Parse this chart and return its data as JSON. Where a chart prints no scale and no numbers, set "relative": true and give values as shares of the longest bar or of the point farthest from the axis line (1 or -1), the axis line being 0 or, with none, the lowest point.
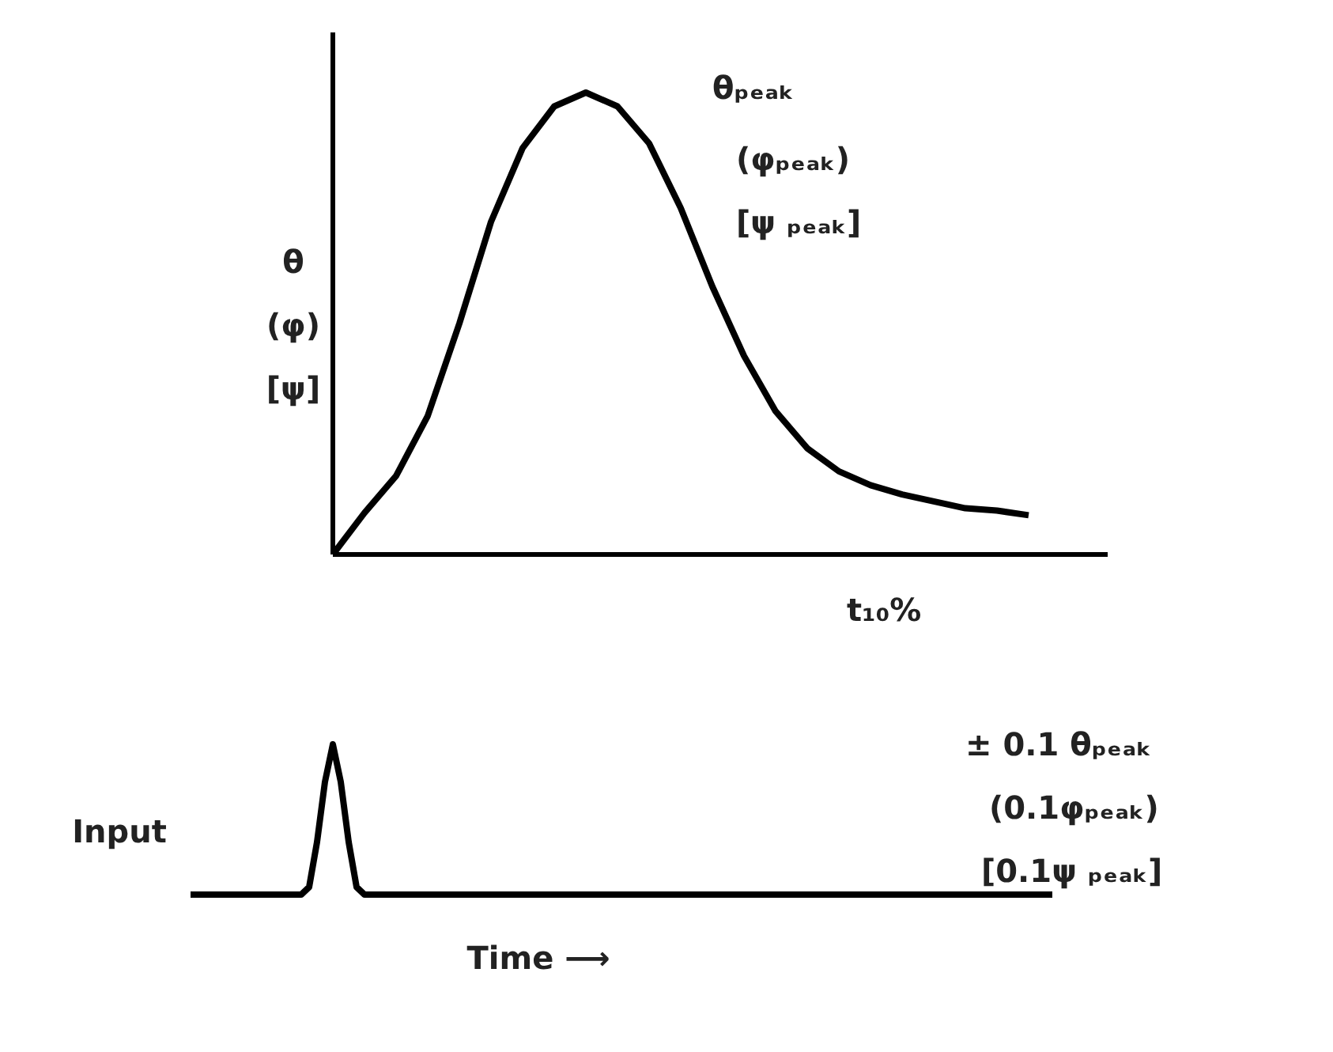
{
  "chart_data": [
    {
      "type": "line",
      "relative": true,
      "ylabel": "θ (φ) [ψ]",
      "color": "#000000",
      "categories": [
        null,
        null,
        null,
        null,
        null,
        null,
        null,
        null,
        null,
        null,
        null,
        null,
        null,
        null,
        null,
        null,
        null,
        null,
        null,
        null,
        null,
        null,
        null,
        null,
        null
      ],
      "values": [
        0,
        0.09,
        0.17,
        0.3,
        0.5,
        0.72,
        0.88,
        0.97,
        1,
        0.97,
        0.89,
        0.75,
        0.58,
        0.43,
        0.31,
        0.23,
        0.18,
        0.15,
        0.13,
        0.115,
        0.1,
        0.095,
        0.085,
        null,
        null
      ],
      "annotations": [
        "θₚₑₐₖ",
        "(φₚₑₐₖ)",
        "[ψ ₚₑₐₖ]",
        "t₁₀%"
      ]
    },
    {
      "type": "line",
      "relative": true,
      "ylabel": "Input",
      "xlabel": "Time ⟶",
      "color": "#000000",
      "categories": [
        null,
        null,
        null,
        null,
        null,
        null,
        null,
        null,
        null,
        null,
        null,
        null,
        null,
        null,
        null,
        null,
        null,
        null,
        null,
        null,
        null,
        null,
        null,
        null,
        null,
        null,
        null,
        null,
        null,
        null,
        null,
        null,
        null,
        null,
        null,
        null,
        null,
        null,
        null,
        null,
        null,
        null,
        null,
        null,
        null,
        null,
        null,
        null,
        null,
        null,
        null,
        null,
        null,
        null,
        null,
        null,
        null,
        null,
        null,
        null,
        null,
        null,
        null,
        null,
        null,
        null,
        null,
        null,
        null,
        null,
        null,
        null,
        null,
        null,
        null,
        null,
        null,
        null,
        null,
        null,
        null,
        null,
        null,
        null,
        null,
        null,
        null,
        null,
        null,
        null,
        null,
        null,
        null,
        null,
        null,
        null,
        null,
        null,
        null,
        null,
        null,
        null,
        null,
        null,
        null,
        null,
        null,
        null,
        null,
        null
      ],
      "values": [
        0,
        0,
        0,
        0,
        0,
        0,
        0,
        0,
        0,
        0,
        0,
        0,
        0,
        0,
        0,
        0.05,
        0.35,
        0.75,
        1,
        0.75,
        0.35,
        0.05,
        0,
        0,
        0,
        0,
        0,
        0,
        0,
        0,
        0,
        0,
        0,
        0,
        0,
        0,
        0,
        0,
        0,
        0,
        0,
        0,
        0,
        0,
        0,
        0,
        0,
        0,
        0,
        0,
        0,
        0,
        0,
        0,
        0,
        0,
        0,
        0,
        0,
        0,
        0,
        0,
        0,
        0,
        0,
        0,
        0,
        0,
        0,
        0,
        0,
        0,
        0,
        0,
        0,
        0,
        0,
        0,
        0,
        0,
        0,
        0,
        0,
        0,
        0,
        0,
        0,
        0,
        0,
        0,
        0,
        0,
        0,
        0,
        0,
        0,
        0,
        0,
        0,
        0,
        0,
        0,
        0,
        0,
        0,
        0,
        0,
        0,
        0,
        0
      ],
      "annotations": [
        "± 0.1 θₚₑₐₖ",
        "(0.1φₚₑₐₖ)",
        "[0.1ψ ₚₑₐₖ]"
      ]
    }
  ]
}
